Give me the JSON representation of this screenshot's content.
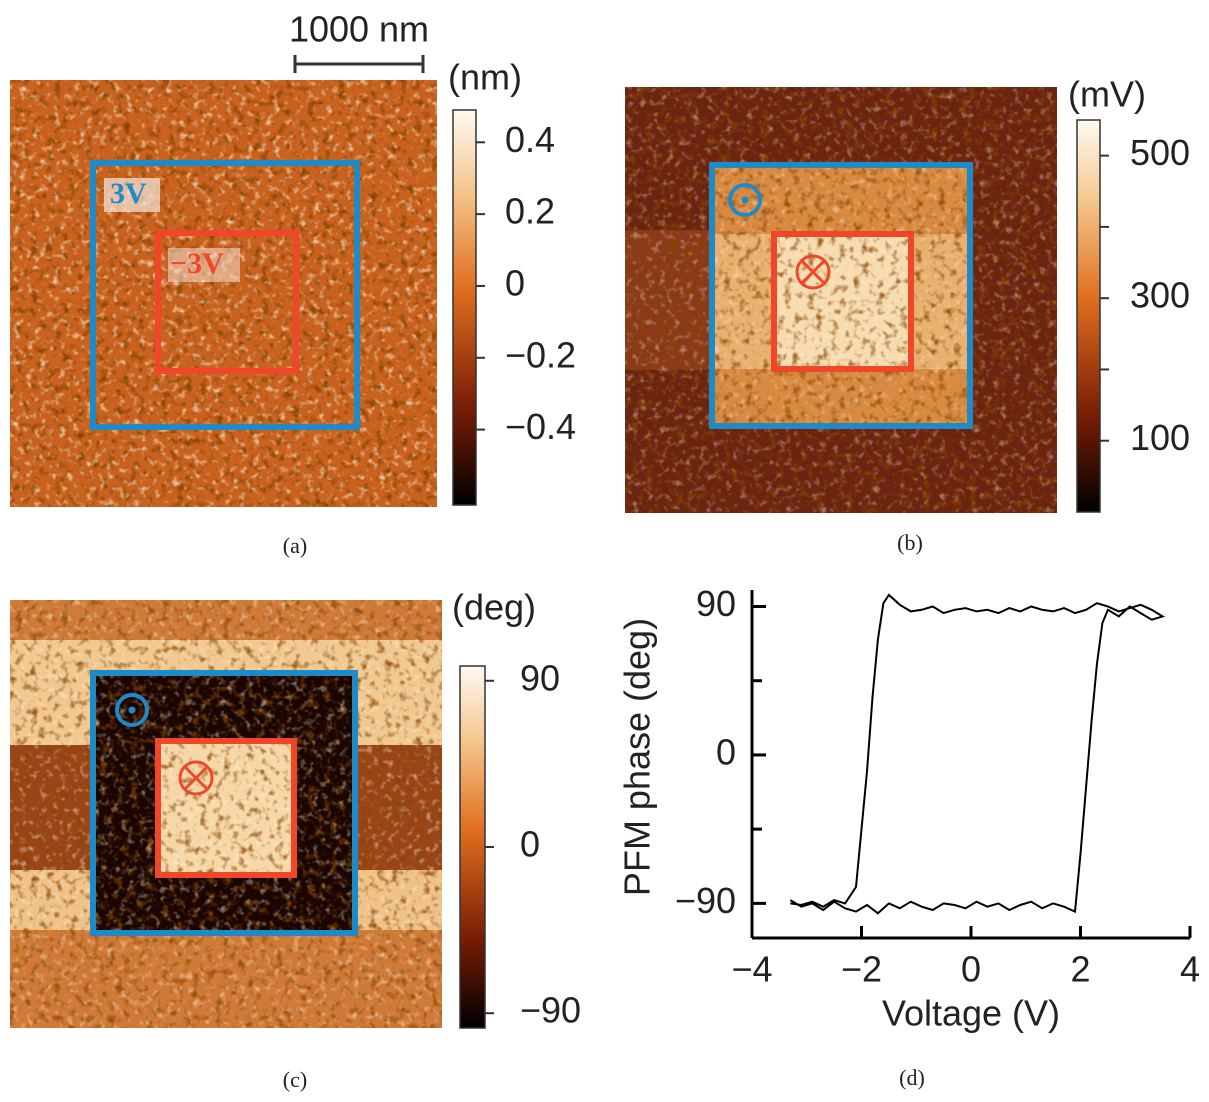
{
  "chart_data": [
    {
      "type": "image",
      "caption": "(a)",
      "scale_bar": "1000 nm",
      "colorbar_label": "(nm)",
      "clim": [
        -0.61,
        0.49
      ],
      "colorbar_ticks": [
        0.4,
        0.2,
        0,
        {
          "value": -0.2,
          "label": "−0.2"
        },
        {
          "value": -0.4,
          "label": "−0.4"
        }
      ],
      "annotations": [
        "3V",
        "−3V"
      ]
    },
    {
      "type": "image",
      "caption": "(b)",
      "colorbar_label": "(mV)",
      "clim": [
        0,
        550
      ],
      "colorbar_ticks": [
        500,
        300,
        100
      ],
      "colorbar_minor_ticks": [
        400,
        200
      ]
    },
    {
      "type": "image",
      "caption": "(c)",
      "colorbar_label": "(deg)",
      "clim": [
        -98,
        98
      ],
      "colorbar_ticks": [
        90,
        0,
        {
          "value": -90,
          "label": "−90"
        }
      ]
    },
    {
      "type": "line",
      "caption": "(d)",
      "x_label": "Voltage (V)",
      "y_label": "PFM phase (deg)",
      "xlim": [
        -4,
        4
      ],
      "ylim": [
        -111,
        100
      ],
      "xticks": [
        {
          "value": -4,
          "label": "−4"
        },
        {
          "value": -2,
          "label": "−2"
        },
        0,
        2,
        4
      ],
      "yticks": [
        90,
        0,
        {
          "value": -90,
          "label": "−90"
        }
      ],
      "yticks_minor": [
        45,
        -45
      ],
      "series": [
        {
          "color": "#000000",
          "x": [
            -3.3,
            -3.1,
            -2.9,
            -2.7,
            -2.5,
            -2.3,
            -2.1,
            -1.9,
            -1.7,
            -1.5,
            -1.3,
            -1.1,
            -0.9,
            -0.7,
            -0.5,
            -0.3,
            -0.1,
            0.1,
            0.3,
            0.5,
            0.7,
            0.9,
            1.1,
            1.3,
            1.5,
            1.7,
            1.9,
            2.0,
            2.1,
            2.2,
            2.3,
            2.4,
            2.5,
            2.7,
            2.9,
            3.1,
            3.3,
            3.5,
            3.3,
            3.1,
            2.9,
            2.7,
            2.5,
            2.3,
            2.1,
            1.9,
            1.7,
            1.5,
            1.3,
            1.1,
            0.9,
            0.7,
            0.5,
            0.3,
            0.1,
            -0.1,
            -0.3,
            -0.5,
            -0.7,
            -0.9,
            -1.1,
            -1.3,
            -1.5,
            -1.6,
            -1.7,
            -1.8,
            -1.9,
            -2.0,
            -2.1,
            -2.3,
            -2.5,
            -2.7,
            -2.9,
            -3.1,
            -3.3
          ],
          "values": [
            -88,
            -92,
            -90,
            -94,
            -89,
            -93,
            -95,
            -91,
            -96,
            -90,
            -93,
            -89,
            -92,
            -94,
            -90,
            -91,
            -93,
            -89,
            -92,
            -90,
            -94,
            -91,
            -89,
            -93,
            -90,
            -92,
            -95,
            -60,
            -20,
            20,
            55,
            80,
            88,
            84,
            90,
            86,
            82,
            84,
            88,
            91,
            89,
            87,
            90,
            92,
            88,
            86,
            89,
            87,
            88,
            90,
            87,
            89,
            86,
            88,
            87,
            89,
            88,
            86,
            90,
            88,
            87,
            91,
            97,
            92,
            70,
            35,
            -10,
            -45,
            -80,
            -90,
            -88,
            -92,
            -89,
            -91,
            -90
          ]
        }
      ]
    }
  ]
}
